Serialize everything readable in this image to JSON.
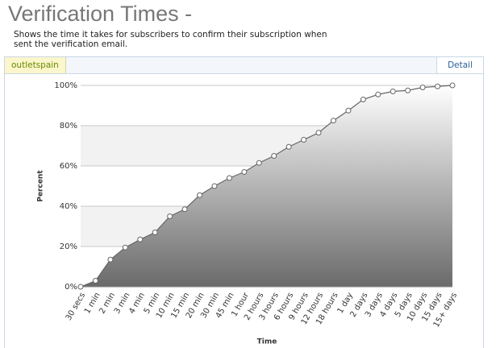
{
  "header": {
    "title": "Verification Times -",
    "description": "Shows the time it takes for subscribers to confirm their subscription when sent the verification email."
  },
  "tabs": {
    "active": "outletspain",
    "detail": "Detail"
  },
  "chart_data": {
    "type": "area",
    "x_label": "Time",
    "y_label": "Percent",
    "categories": [
      "30 secs",
      "1 min",
      "2 min",
      "3 min",
      "4 min",
      "5 min",
      "10 min",
      "15 min",
      "20 min",
      "30 min",
      "45 min",
      "1 hour",
      "2 hours",
      "3 hours",
      "6 hours",
      "9 hours",
      "12 hours",
      "18 hours",
      "1 day",
      "2 days",
      "3 days",
      "4 days",
      "5 days",
      "10 days",
      "15 days",
      "15+ days"
    ],
    "values": [
      0,
      3,
      13.5,
      19.5,
      23.5,
      27,
      35,
      38.5,
      45.5,
      50,
      54,
      57,
      61.5,
      65,
      69.5,
      73,
      76.5,
      82.5,
      87.5,
      93,
      95.5,
      97,
      97.5,
      99,
      99.5,
      100
    ],
    "color": "#666666",
    "ylim": [
      0,
      100
    ],
    "yticks": [
      {
        "value": 0,
        "label": "0%"
      },
      {
        "value": 20,
        "label": "20%"
      },
      {
        "value": 40,
        "label": "40%"
      },
      {
        "value": 60,
        "label": "60%"
      },
      {
        "value": 80,
        "label": "80%"
      },
      {
        "value": 100,
        "label": "100%"
      }
    ],
    "grid": true
  }
}
